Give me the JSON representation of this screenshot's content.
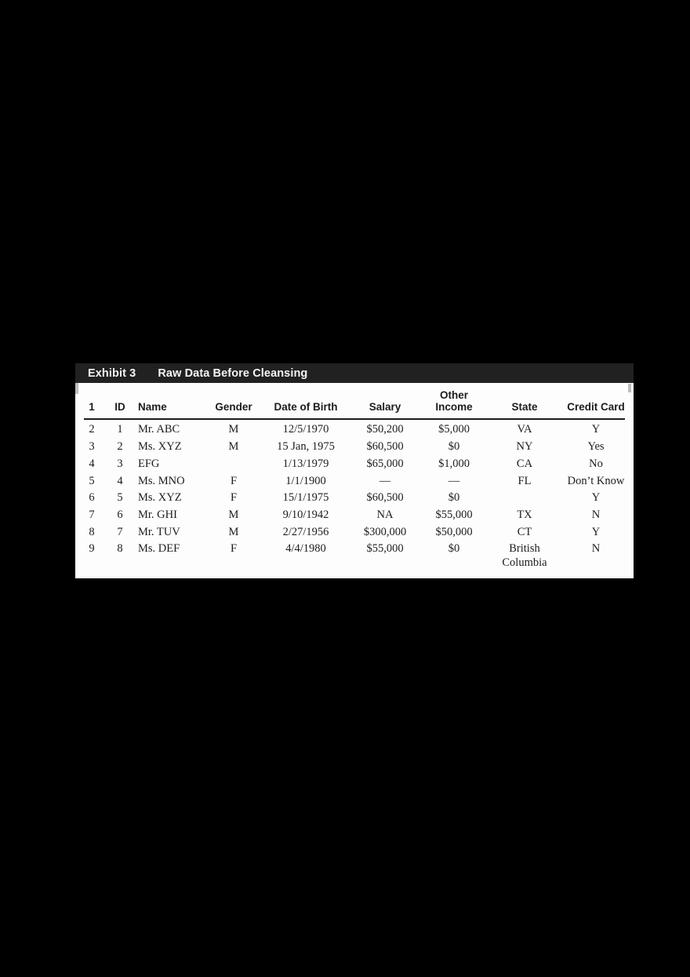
{
  "exhibit": {
    "label": "Exhibit 3",
    "title": "Raw Data Before Cleansing"
  },
  "table": {
    "columns": [
      "1",
      "ID",
      "Name",
      "Gender",
      "Date of Birth",
      "Salary",
      "Other\nIncome",
      "State",
      "Credit Card"
    ],
    "rows": [
      [
        "2",
        "1",
        "Mr. ABC",
        "M",
        "12/5/1970",
        "$50,200",
        "$5,000",
        "VA",
        "Y"
      ],
      [
        "3",
        "2",
        "Ms. XYZ",
        "M",
        "15 Jan, 1975",
        "$60,500",
        "$0",
        "NY",
        "Yes"
      ],
      [
        "4",
        "3",
        "EFG",
        "",
        "1/13/1979",
        "$65,000",
        "$1,000",
        "CA",
        "No"
      ],
      [
        "5",
        "4",
        "Ms. MNO",
        "F",
        "1/1/1900",
        "—",
        "—",
        "FL",
        "Don’t Know"
      ],
      [
        "6",
        "5",
        "Ms. XYZ",
        "F",
        "15/1/1975",
        "$60,500",
        "$0",
        "",
        "Y"
      ],
      [
        "7",
        "6",
        "Mr. GHI",
        "M",
        "9/10/1942",
        "NA",
        "$55,000",
        "TX",
        "N"
      ],
      [
        "8",
        "7",
        "Mr. TUV",
        "M",
        "2/27/1956",
        "$300,000",
        "$50,000",
        "CT",
        "Y"
      ],
      [
        "9",
        "8",
        "Ms. DEF",
        "F",
        "4/4/1980",
        "$55,000",
        "$0",
        "British Columbia",
        "N"
      ]
    ]
  },
  "colors": {
    "page_background": "#000000",
    "titlebar_background": "#212121",
    "titlebar_text": "#f5f5f5",
    "panel_background": "#fdfdfd",
    "text": "#1d1c1a",
    "header_rule": "#1c1c1c"
  }
}
